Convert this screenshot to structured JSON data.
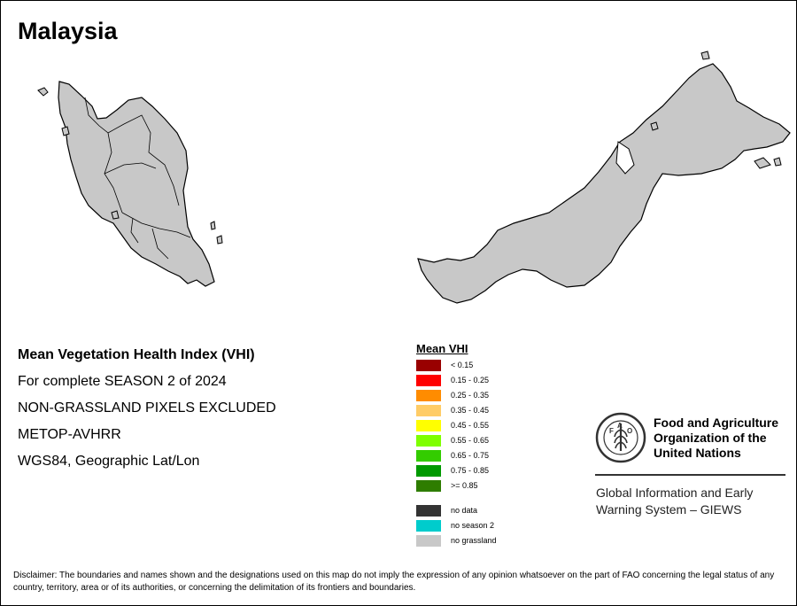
{
  "title": "Malaysia",
  "regions": [
    "Peninsular Malaysia",
    "East Malaysia (Borneo)"
  ],
  "info_lines": [
    "Mean Vegetation Health Index (VHI)",
    "For complete SEASON 2 of 2024",
    "NON-GRASSLAND PIXELS EXCLUDED",
    "METOP-AVHRR",
    "WGS84, Geographic Lat/Lon"
  ],
  "legend": {
    "title": "Mean VHI",
    "classes": [
      {
        "label": "< 0.15",
        "color": "#990000"
      },
      {
        "label": "0.15 - 0.25",
        "color": "#ff0000"
      },
      {
        "label": "0.25 - 0.35",
        "color": "#ff8c00"
      },
      {
        "label": "0.35 - 0.45",
        "color": "#ffcc66"
      },
      {
        "label": "0.45 - 0.55",
        "color": "#ffff00"
      },
      {
        "label": "0.55 - 0.65",
        "color": "#7fff00"
      },
      {
        "label": "0.65 - 0.75",
        "color": "#33cc00"
      },
      {
        "label": "0.75 - 0.85",
        "color": "#009900"
      },
      {
        "label": ">= 0.85",
        "color": "#2e7d00"
      }
    ],
    "special": [
      {
        "label": "no data",
        "color": "#333333"
      },
      {
        "label": "no season 2",
        "color": "#00cccc"
      },
      {
        "label": "no grassland",
        "color": "#c8c8c8"
      }
    ]
  },
  "land_color": "#c8c8c8",
  "org": {
    "name": "Food and Agriculture Organization of the United Nations",
    "logo_text": "FIAT PANIS",
    "logo_letters": "FAO",
    "giews": "Global Information and Early Warning System – GIEWS"
  },
  "disclaimer": "Disclaimer: The boundaries and names shown and the designations used on this map do not imply the expression of any opinion whatsoever on the part of FAO concerning the legal status of any country, territory, area or of its authorities, or concerning the delimitation of its frontiers and boundaries."
}
